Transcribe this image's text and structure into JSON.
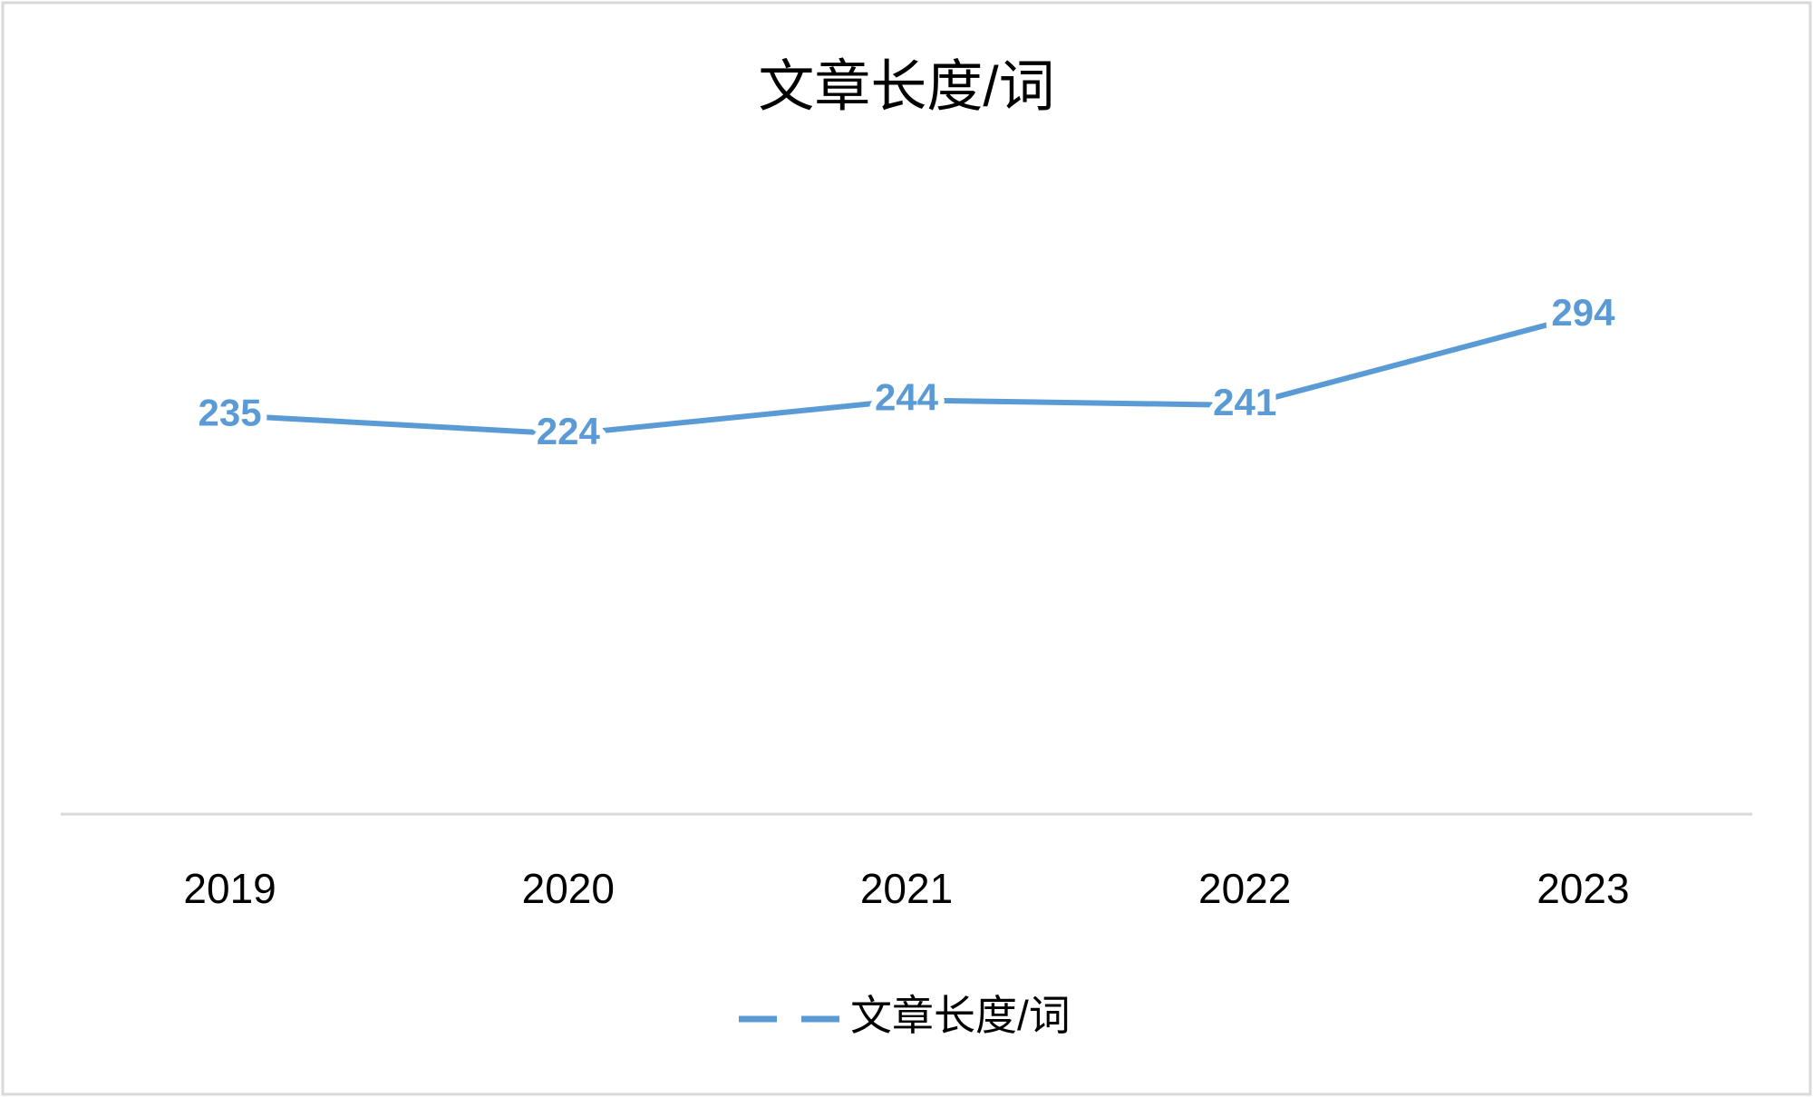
{
  "chart_data": {
    "type": "line",
    "title": "文章长度/词",
    "categories": [
      "2019",
      "2020",
      "2021",
      "2022",
      "2023"
    ],
    "series": [
      {
        "name": "文章长度/词",
        "color": "#5b9bd5",
        "values": [
          235,
          224,
          244,
          241,
          294
        ]
      }
    ],
    "ylim": [
      0,
      350
    ],
    "legend": "bottom"
  }
}
